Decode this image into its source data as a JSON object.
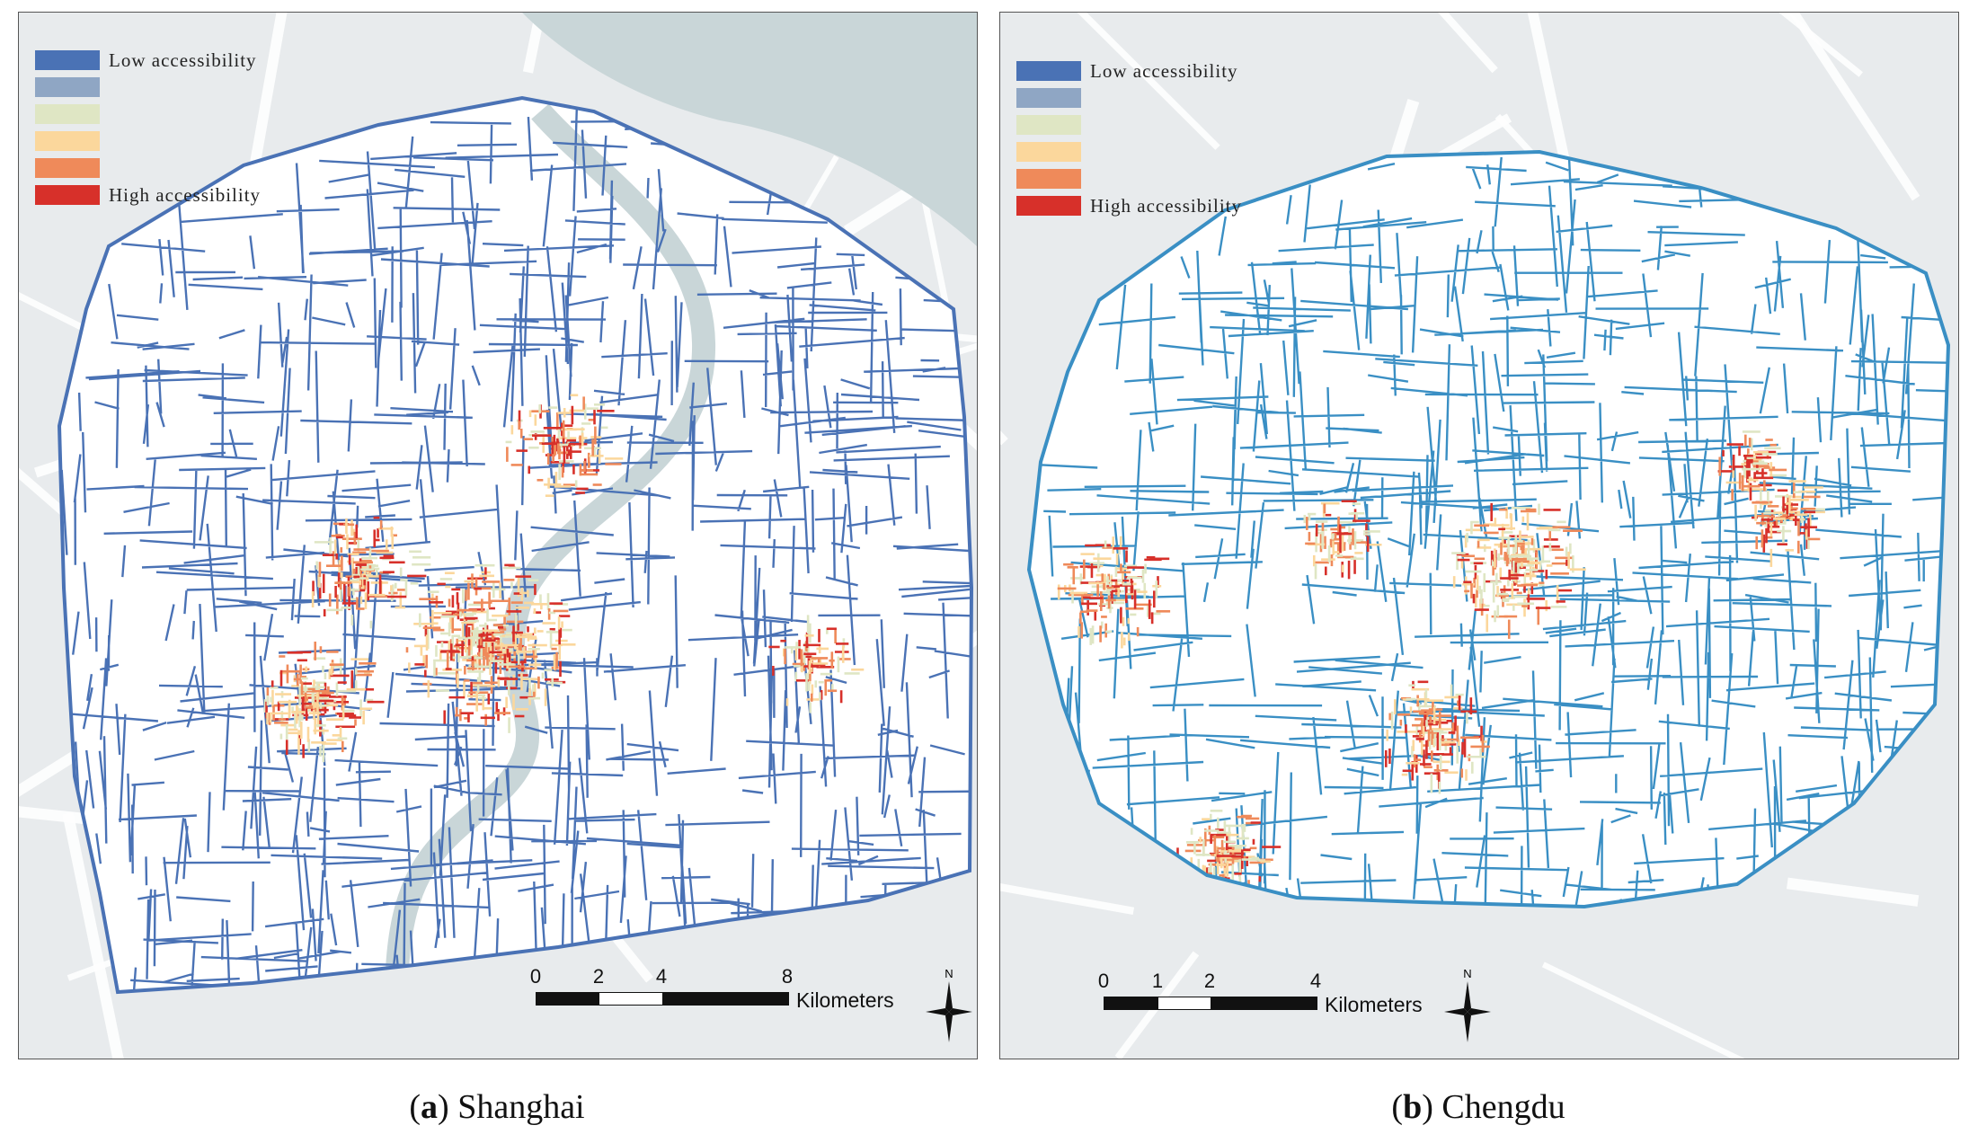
{
  "legend": {
    "low_label": "Low accessibility",
    "high_label": "High accessibility",
    "colors": [
      "#4a72b5",
      "#8fa6c4",
      "#dfe6c4",
      "#fbd79c",
      "#ef8a5a",
      "#d7302a"
    ]
  },
  "scale_units": "Kilometers",
  "north_label": "N",
  "panels": {
    "a": {
      "letter": "a",
      "city": "Shanghai",
      "scale_ticks": [
        "0",
        "2",
        "4",
        "8"
      ],
      "road_color": "#4a72b5"
    },
    "b": {
      "letter": "b",
      "city": "Chengdu",
      "scale_ticks": [
        "0",
        "1",
        "2",
        "4"
      ],
      "road_color": "#3a8fc4"
    }
  },
  "basemap": {
    "background": "#e8ebed",
    "water": "#c9d6d8",
    "roads": "#ffffff"
  }
}
